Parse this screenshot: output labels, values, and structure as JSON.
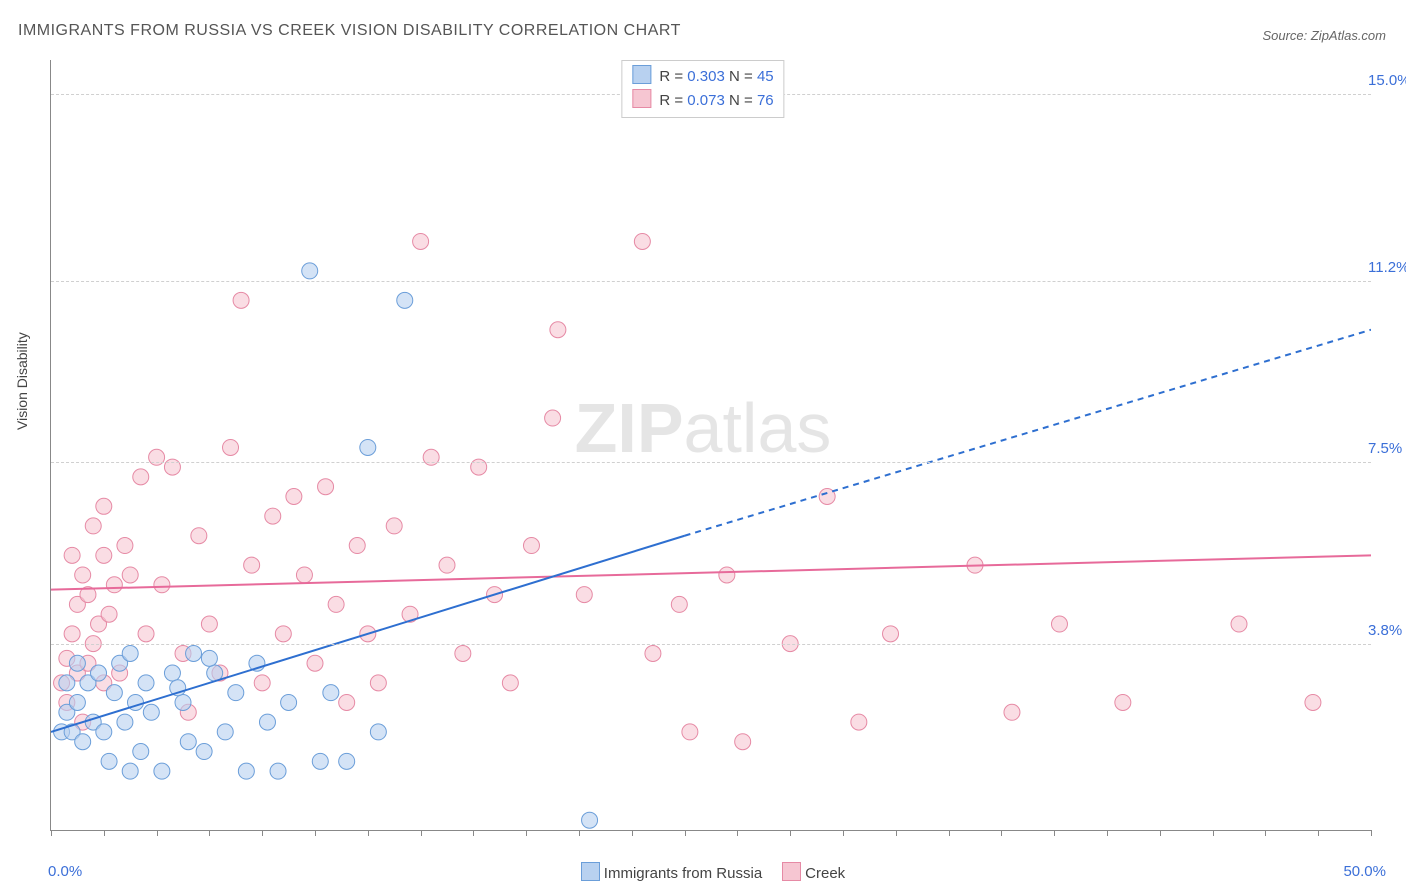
{
  "title": "IMMIGRANTS FROM RUSSIA VS CREEK VISION DISABILITY CORRELATION CHART",
  "source_label": "Source: ",
  "source_value": "ZipAtlas.com",
  "watermark_bold": "ZIP",
  "watermark_rest": "atlas",
  "chart": {
    "type": "scatter",
    "xlim": [
      0.0,
      50.0
    ],
    "ylim": [
      0.0,
      15.7
    ],
    "xlabel_min": "0.0%",
    "xlabel_max": "50.0%",
    "ylabel": "Vision Disability",
    "yticks": [
      {
        "v": 3.8,
        "label": "3.8%"
      },
      {
        "v": 7.5,
        "label": "7.5%"
      },
      {
        "v": 11.2,
        "label": "11.2%"
      },
      {
        "v": 15.0,
        "label": "15.0%"
      }
    ],
    "xtick_positions": [
      0,
      2,
      4,
      6,
      8,
      10,
      12,
      14,
      16,
      18,
      20,
      22,
      24,
      26,
      28,
      30,
      32,
      34,
      36,
      38,
      40,
      42,
      44,
      46,
      48,
      50
    ],
    "grid_color": "#d0d0d0",
    "axis_color": "#888888",
    "background": "#ffffff",
    "series_a": {
      "name": "Immigrants from Russia",
      "color_fill": "#b8d1f0",
      "color_stroke": "#6b9ed9",
      "line_color": "#2e6fd0",
      "R": "0.303",
      "N": "45",
      "marker_r": 8,
      "trend": {
        "x1": 0.0,
        "y1": 2.0,
        "x2_solid": 24.0,
        "y2_solid": 6.0,
        "x2": 50.0,
        "y2": 10.2,
        "width": 2
      },
      "points": [
        [
          0.4,
          2.0
        ],
        [
          0.6,
          2.4
        ],
        [
          0.8,
          2.0
        ],
        [
          1.0,
          2.6
        ],
        [
          1.2,
          1.8
        ],
        [
          1.4,
          3.0
        ],
        [
          1.6,
          2.2
        ],
        [
          1.8,
          3.2
        ],
        [
          2.0,
          2.0
        ],
        [
          2.2,
          1.4
        ],
        [
          2.4,
          2.8
        ],
        [
          2.6,
          3.4
        ],
        [
          2.8,
          2.2
        ],
        [
          3.0,
          1.2
        ],
        [
          3.2,
          2.6
        ],
        [
          3.4,
          1.6
        ],
        [
          3.6,
          3.0
        ],
        [
          3.8,
          2.4
        ],
        [
          4.2,
          1.2
        ],
        [
          4.6,
          3.2
        ],
        [
          5.0,
          2.6
        ],
        [
          5.4,
          3.6
        ],
        [
          5.8,
          1.6
        ],
        [
          6.2,
          3.2
        ],
        [
          6.6,
          2.0
        ],
        [
          7.0,
          2.8
        ],
        [
          7.4,
          1.2
        ],
        [
          7.8,
          3.4
        ],
        [
          8.2,
          2.2
        ],
        [
          8.6,
          1.2
        ],
        [
          9.0,
          2.6
        ],
        [
          9.8,
          11.4
        ],
        [
          10.2,
          1.4
        ],
        [
          10.6,
          2.8
        ],
        [
          11.2,
          1.4
        ],
        [
          12.0,
          7.8
        ],
        [
          12.4,
          2.0
        ],
        [
          13.4,
          10.8
        ],
        [
          20.4,
          0.2
        ],
        [
          6.0,
          3.5
        ],
        [
          4.8,
          2.9
        ],
        [
          5.2,
          1.8
        ],
        [
          3.0,
          3.6
        ],
        [
          1.0,
          3.4
        ],
        [
          0.6,
          3.0
        ]
      ]
    },
    "series_b": {
      "name": "Creek",
      "color_fill": "#f6c6d2",
      "color_stroke": "#e68aa5",
      "line_color": "#e76a9a",
      "R": "0.073",
      "N": "76",
      "marker_r": 8,
      "trend": {
        "x1": 0.0,
        "y1": 4.9,
        "x2": 50.0,
        "y2": 5.6,
        "width": 2
      },
      "points": [
        [
          0.4,
          3.0
        ],
        [
          0.6,
          3.5
        ],
        [
          0.8,
          4.0
        ],
        [
          1.0,
          4.6
        ],
        [
          1.0,
          3.2
        ],
        [
          1.2,
          5.2
        ],
        [
          1.4,
          3.4
        ],
        [
          1.4,
          4.8
        ],
        [
          1.6,
          3.8
        ],
        [
          1.8,
          4.2
        ],
        [
          2.0,
          5.6
        ],
        [
          2.0,
          3.0
        ],
        [
          2.2,
          4.4
        ],
        [
          2.4,
          5.0
        ],
        [
          2.6,
          3.2
        ],
        [
          2.8,
          5.8
        ],
        [
          3.0,
          5.2
        ],
        [
          3.4,
          7.2
        ],
        [
          3.6,
          4.0
        ],
        [
          4.0,
          7.6
        ],
        [
          4.2,
          5.0
        ],
        [
          4.6,
          7.4
        ],
        [
          5.0,
          3.6
        ],
        [
          5.2,
          2.4
        ],
        [
          5.6,
          6.0
        ],
        [
          6.0,
          4.2
        ],
        [
          6.4,
          3.2
        ],
        [
          6.8,
          7.8
        ],
        [
          7.2,
          10.8
        ],
        [
          7.6,
          5.4
        ],
        [
          8.0,
          3.0
        ],
        [
          8.4,
          6.4
        ],
        [
          8.8,
          4.0
        ],
        [
          9.2,
          6.8
        ],
        [
          9.6,
          5.2
        ],
        [
          10.0,
          3.4
        ],
        [
          10.4,
          7.0
        ],
        [
          10.8,
          4.6
        ],
        [
          11.2,
          2.6
        ],
        [
          11.6,
          5.8
        ],
        [
          12.0,
          4.0
        ],
        [
          12.4,
          3.0
        ],
        [
          13.0,
          6.2
        ],
        [
          13.6,
          4.4
        ],
        [
          14.0,
          12.0
        ],
        [
          14.4,
          7.6
        ],
        [
          15.0,
          5.4
        ],
        [
          15.6,
          3.6
        ],
        [
          16.2,
          7.4
        ],
        [
          16.8,
          4.8
        ],
        [
          17.4,
          3.0
        ],
        [
          18.2,
          5.8
        ],
        [
          19.0,
          8.4
        ],
        [
          19.2,
          10.2
        ],
        [
          20.2,
          4.8
        ],
        [
          22.4,
          12.0
        ],
        [
          22.8,
          3.6
        ],
        [
          23.8,
          4.6
        ],
        [
          24.2,
          2.0
        ],
        [
          25.6,
          5.2
        ],
        [
          26.2,
          1.8
        ],
        [
          28.0,
          3.8
        ],
        [
          29.4,
          6.8
        ],
        [
          30.6,
          2.2
        ],
        [
          31.8,
          4.0
        ],
        [
          35.0,
          5.4
        ],
        [
          36.4,
          2.4
        ],
        [
          38.2,
          4.2
        ],
        [
          40.6,
          2.6
        ],
        [
          45.0,
          4.2
        ],
        [
          47.8,
          2.6
        ],
        [
          0.6,
          2.6
        ],
        [
          1.2,
          2.2
        ],
        [
          0.8,
          5.6
        ],
        [
          1.6,
          6.2
        ],
        [
          2.0,
          6.6
        ]
      ]
    }
  },
  "top_legend": {
    "rows": [
      {
        "sw_fill": "#b8d1f0",
        "sw_stroke": "#6b9ed9",
        "r_label": "R = ",
        "r_val": "0.303",
        "n_label": "   N = ",
        "n_val": "45"
      },
      {
        "sw_fill": "#f6c6d2",
        "sw_stroke": "#e68aa5",
        "r_label": "R = ",
        "r_val": "0.073",
        "n_label": "   N = ",
        "n_val": "76"
      }
    ]
  },
  "bottom_legend": [
    {
      "sw_fill": "#b8d1f0",
      "sw_stroke": "#6b9ed9",
      "label": "Immigrants from Russia"
    },
    {
      "sw_fill": "#f6c6d2",
      "sw_stroke": "#e68aa5",
      "label": "Creek"
    }
  ]
}
